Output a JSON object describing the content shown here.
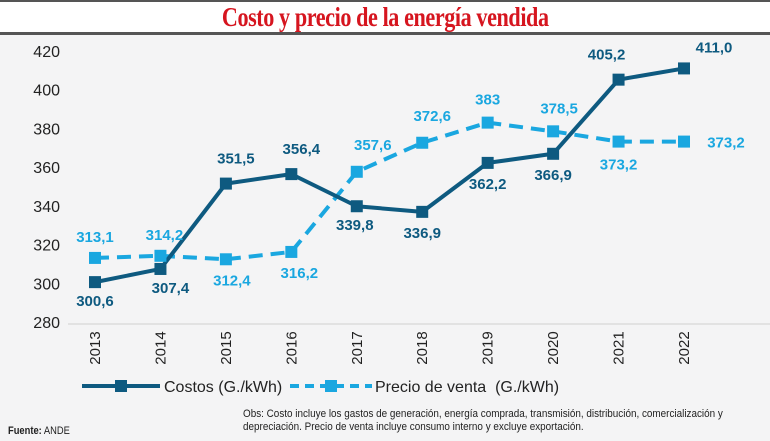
{
  "header": {
    "title": "Costo y precio de la energía vendida"
  },
  "footer": {
    "source_label": "Fuente:",
    "source_value": "ANDE",
    "note": "Obs: Costo incluye los gastos de generación, energía comprada, transmisión, distribución, comercialización y depreciación. Precio de venta incluye consumo interno y excluye exportación."
  },
  "colors": {
    "costos": "#0e5a80",
    "precio": "#1aa7e0",
    "title": "#d6151f"
  },
  "chart_data": {
    "type": "line",
    "title": "Costo y precio de la energía vendida",
    "xlabel": "",
    "ylabel": "",
    "x": [
      "2013",
      "2014",
      "2015",
      "2016",
      "2017",
      "2018",
      "2019",
      "2020",
      "2021",
      "2022"
    ],
    "ylim": [
      280,
      420
    ],
    "yticks": [
      280,
      300,
      320,
      340,
      360,
      380,
      400,
      420
    ],
    "grid": false,
    "legend": "bottom",
    "series": [
      {
        "name": "Costos (G./kWh)",
        "style": "solid",
        "values": [
          300.6,
          307.4,
          351.5,
          356.4,
          339.8,
          336.9,
          362.2,
          366.9,
          405.2,
          411.0
        ],
        "labels": [
          "300,6",
          "307,4",
          "351,5",
          "356,4",
          "339,8",
          "336,9",
          "362,2",
          "366,9",
          "405,2",
          "411,0"
        ]
      },
      {
        "name": "Precio de venta  (G./kWh)",
        "style": "dashed",
        "values": [
          313.1,
          314.2,
          312.4,
          316.2,
          357.6,
          372.6,
          383,
          378.5,
          373.2,
          373.2
        ],
        "labels": [
          "313,1",
          "314,2",
          "312,4",
          "316,2",
          "357,6",
          "372,6",
          "383",
          "378,5",
          "373,2",
          "373,2"
        ]
      }
    ]
  }
}
